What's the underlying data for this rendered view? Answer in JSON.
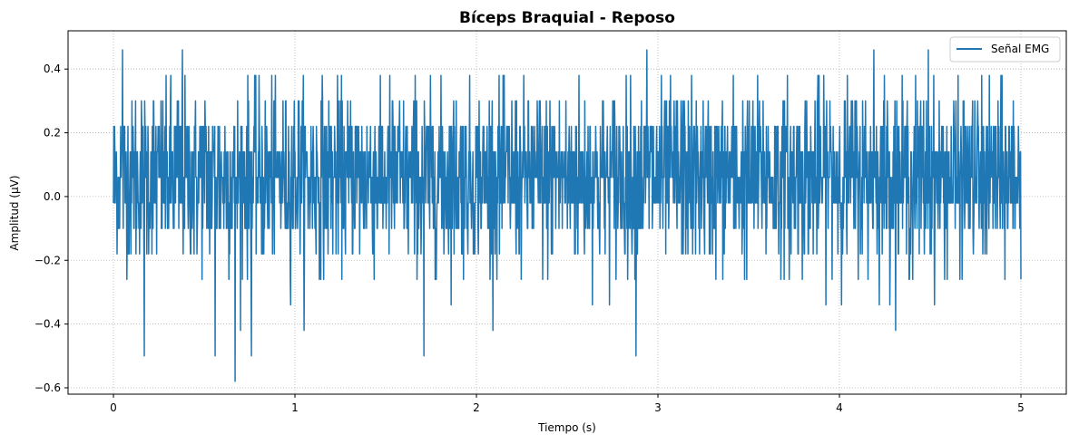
{
  "chart_data": {
    "type": "line",
    "title": "Bíceps Braquial - Reposo",
    "xlabel": "Tiempo (s)",
    "ylabel": "Amplitud (µV)",
    "xlim": [
      -0.25,
      5.25
    ],
    "ylim": [
      -0.62,
      0.52
    ],
    "xticks": [
      0,
      1,
      2,
      3,
      4,
      5
    ],
    "xtick_labels": [
      "0",
      "1",
      "2",
      "3",
      "4",
      "5"
    ],
    "yticks": [
      -0.6,
      -0.4,
      -0.2,
      0.0,
      0.2,
      0.4
    ],
    "ytick_labels": [
      "−0.6",
      "−0.4",
      "−0.2",
      "0.0",
      "0.2",
      "0.4"
    ],
    "grid": true,
    "legend_position": "top-right",
    "series": [
      {
        "name": "Señal EMG",
        "color": "#1f77b4",
        "x_range": [
          0,
          5
        ],
        "quantization_step": 0.08,
        "quantized_levels": [
          -0.58,
          -0.5,
          -0.42,
          -0.34,
          -0.26,
          -0.18,
          -0.1,
          -0.02,
          0.06,
          0.14,
          0.22,
          0.3,
          0.38,
          0.46
        ],
        "min": -0.58,
        "max": 0.46,
        "dense_range": [
          -0.18,
          0.3
        ],
        "extreme_points": [
          {
            "x": 0.05,
            "y": 0.46
          },
          {
            "x": 0.38,
            "y": 0.46
          },
          {
            "x": 0.67,
            "y": -0.58
          },
          {
            "x": 0.17,
            "y": -0.5
          },
          {
            "x": 0.56,
            "y": -0.5
          },
          {
            "x": 0.76,
            "y": -0.5
          },
          {
            "x": 1.71,
            "y": -0.5
          },
          {
            "x": 2.88,
            "y": -0.5
          },
          {
            "x": 2.94,
            "y": 0.46
          },
          {
            "x": 4.19,
            "y": 0.46
          },
          {
            "x": 4.49,
            "y": 0.46
          }
        ]
      }
    ]
  }
}
